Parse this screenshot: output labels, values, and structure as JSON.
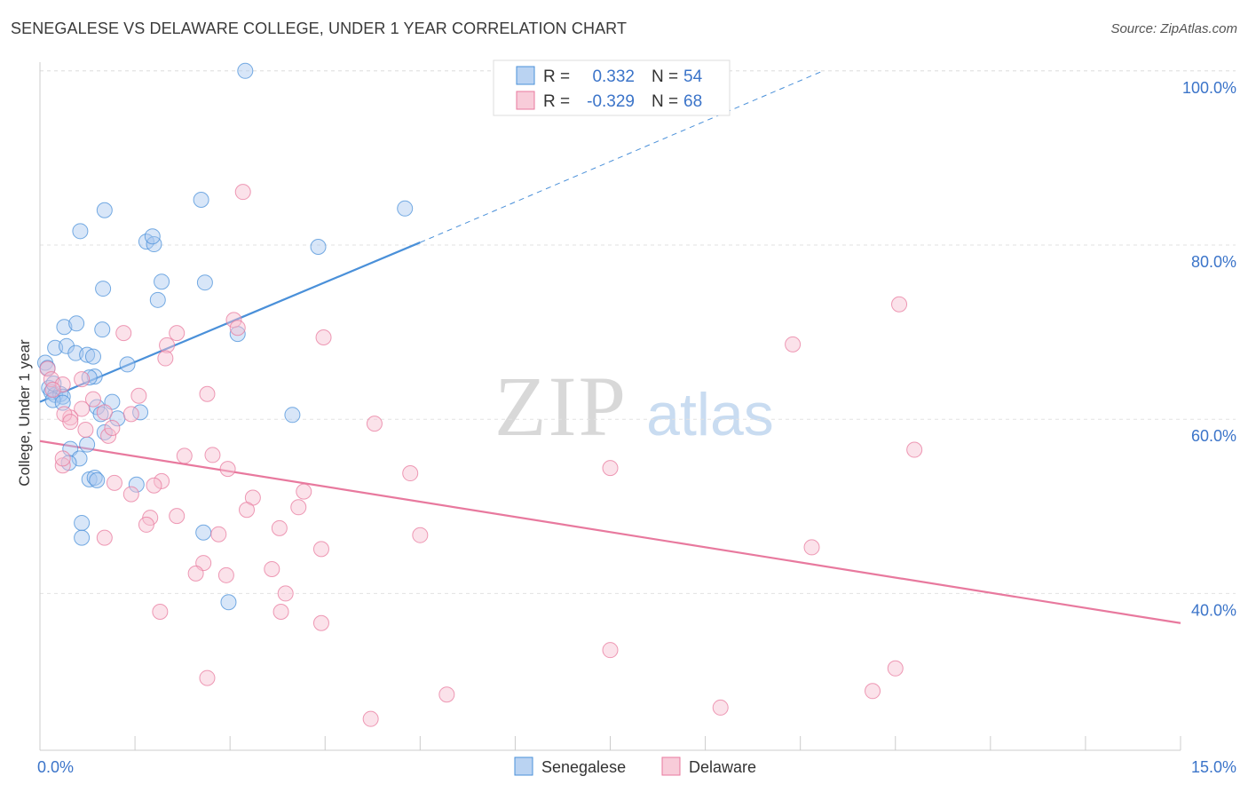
{
  "header": {
    "title": "SENEGALESE VS DELAWARE COLLEGE, UNDER 1 YEAR CORRELATION CHART",
    "source": "Source: ZipAtlas.com"
  },
  "watermark": {
    "zip": "ZIP",
    "atlas": "atlas"
  },
  "legend_box": {
    "rows": [
      {
        "r_label": "R =",
        "r_value": "0.332",
        "n_label": "N =",
        "n_value": "54",
        "color": "#4a90d9"
      },
      {
        "r_label": "R =",
        "r_value": "-0.329",
        "n_label": "N =",
        "n_value": "68",
        "color": "#e8799e"
      }
    ]
  },
  "chart_data": {
    "type": "scatter",
    "title": "SENEGALESE VS DELAWARE COLLEGE, UNDER 1 YEAR CORRELATION CHART",
    "xlabel": "",
    "ylabel": "College, Under 1 year",
    "xlim": [
      0,
      15
    ],
    "ylim": [
      22,
      101
    ],
    "x_tick_labels": [
      "0.0%",
      "15.0%"
    ],
    "x_tick_values": [
      0,
      15
    ],
    "y_tick_labels": [
      "40.0%",
      "60.0%",
      "80.0%",
      "100.0%"
    ],
    "y_tick_values": [
      40,
      60,
      80,
      100
    ],
    "grid": true,
    "legend": [
      "Senegalese",
      "Delaware"
    ],
    "series": [
      {
        "name": "Senegalese",
        "color": "#4a90d9",
        "fill": "#a9c8ef",
        "trend": {
          "x0": 0,
          "y0": 62.0,
          "x1": 5.0,
          "y1": 80.3,
          "dash_x1": 10.3,
          "dash_y1": 100.0
        },
        "points": [
          [
            2.7,
            100.0
          ],
          [
            0.85,
            84.0
          ],
          [
            2.12,
            85.2
          ],
          [
            4.8,
            84.2
          ],
          [
            0.53,
            81.6
          ],
          [
            1.4,
            80.4
          ],
          [
            1.5,
            80.1
          ],
          [
            3.66,
            79.8
          ],
          [
            1.6,
            75.8
          ],
          [
            2.17,
            75.7
          ],
          [
            0.83,
            75.0
          ],
          [
            1.55,
            73.7
          ],
          [
            0.32,
            70.6
          ],
          [
            0.48,
            71.0
          ],
          [
            0.82,
            70.3
          ],
          [
            2.6,
            69.8
          ],
          [
            0.2,
            68.2
          ],
          [
            0.35,
            68.4
          ],
          [
            0.47,
            67.6
          ],
          [
            0.62,
            67.4
          ],
          [
            0.7,
            67.2
          ],
          [
            1.15,
            66.3
          ],
          [
            0.07,
            66.5
          ],
          [
            0.1,
            65.9
          ],
          [
            0.72,
            64.9
          ],
          [
            0.65,
            64.8
          ],
          [
            0.12,
            63.6
          ],
          [
            0.15,
            63.1
          ],
          [
            0.2,
            62.8
          ],
          [
            0.27,
            62.9
          ],
          [
            0.3,
            62.6
          ],
          [
            0.17,
            62.2
          ],
          [
            0.3,
            61.9
          ],
          [
            0.95,
            62.0
          ],
          [
            0.75,
            61.4
          ],
          [
            0.8,
            60.6
          ],
          [
            1.32,
            60.8
          ],
          [
            1.02,
            60.1
          ],
          [
            3.32,
            60.5
          ],
          [
            0.85,
            58.5
          ],
          [
            0.62,
            57.1
          ],
          [
            0.4,
            56.6
          ],
          [
            0.52,
            55.5
          ],
          [
            0.38,
            55.0
          ],
          [
            0.65,
            53.1
          ],
          [
            0.72,
            53.3
          ],
          [
            0.75,
            53.0
          ],
          [
            1.27,
            52.5
          ],
          [
            0.55,
            48.1
          ],
          [
            0.55,
            46.4
          ],
          [
            2.15,
            47.0
          ],
          [
            2.48,
            39.0
          ],
          [
            1.48,
            81.0
          ],
          [
            0.18,
            64.1
          ]
        ]
      },
      {
        "name": "Delaware",
        "color": "#e8799e",
        "fill": "#f6bfd0",
        "trend": {
          "x0": 0,
          "y0": 57.5,
          "x1": 15.0,
          "y1": 36.6
        },
        "points": [
          [
            2.67,
            86.1
          ],
          [
            11.3,
            73.2
          ],
          [
            2.55,
            71.4
          ],
          [
            2.6,
            70.5
          ],
          [
            1.1,
            69.9
          ],
          [
            1.8,
            69.9
          ],
          [
            3.73,
            69.4
          ],
          [
            9.9,
            68.6
          ],
          [
            1.67,
            68.5
          ],
          [
            1.65,
            67.0
          ],
          [
            0.1,
            65.8
          ],
          [
            0.15,
            64.6
          ],
          [
            0.3,
            64.0
          ],
          [
            0.55,
            64.6
          ],
          [
            0.17,
            63.4
          ],
          [
            0.7,
            62.3
          ],
          [
            1.3,
            62.7
          ],
          [
            2.2,
            62.9
          ],
          [
            0.55,
            61.2
          ],
          [
            0.4,
            60.2
          ],
          [
            0.32,
            60.6
          ],
          [
            0.85,
            60.8
          ],
          [
            1.2,
            60.6
          ],
          [
            0.4,
            59.7
          ],
          [
            0.6,
            58.8
          ],
          [
            0.9,
            58.1
          ],
          [
            4.4,
            59.5
          ],
          [
            11.5,
            56.5
          ],
          [
            1.9,
            55.8
          ],
          [
            2.27,
            55.9
          ],
          [
            0.3,
            54.7
          ],
          [
            2.47,
            54.3
          ],
          [
            7.5,
            54.4
          ],
          [
            4.87,
            53.8
          ],
          [
            0.98,
            52.7
          ],
          [
            1.6,
            52.9
          ],
          [
            1.5,
            52.4
          ],
          [
            3.47,
            51.7
          ],
          [
            1.2,
            51.4
          ],
          [
            2.8,
            51.0
          ],
          [
            3.4,
            49.9
          ],
          [
            2.72,
            49.6
          ],
          [
            1.8,
            48.9
          ],
          [
            1.45,
            48.7
          ],
          [
            1.4,
            47.9
          ],
          [
            3.15,
            47.5
          ],
          [
            2.35,
            46.8
          ],
          [
            5.0,
            46.7
          ],
          [
            0.85,
            46.4
          ],
          [
            3.7,
            45.1
          ],
          [
            10.15,
            45.3
          ],
          [
            2.15,
            43.5
          ],
          [
            2.05,
            42.3
          ],
          [
            2.45,
            42.1
          ],
          [
            3.05,
            42.8
          ],
          [
            3.23,
            40.0
          ],
          [
            1.58,
            37.9
          ],
          [
            3.17,
            37.9
          ],
          [
            3.7,
            36.6
          ],
          [
            7.5,
            33.5
          ],
          [
            11.25,
            31.4
          ],
          [
            2.2,
            30.3
          ],
          [
            5.35,
            28.4
          ],
          [
            10.95,
            28.8
          ],
          [
            8.95,
            26.9
          ],
          [
            4.35,
            25.6
          ],
          [
            0.3,
            55.5
          ],
          [
            0.95,
            59.0
          ]
        ]
      }
    ]
  }
}
